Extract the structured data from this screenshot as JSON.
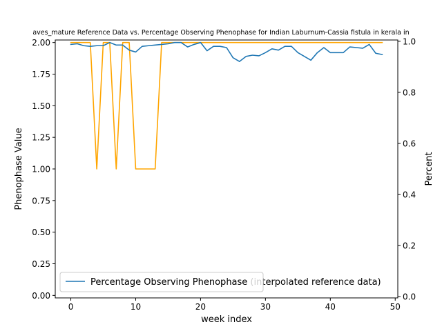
{
  "chart_data": {
    "type": "line",
    "title": "aves_mature Reference Data vs. Percentage Observing Phenophase for Indian Laburnum-Cassia fistula in kerala in",
    "xlabel": "week index",
    "ylabel_left": "Phenophase Value",
    "ylabel_right": "Percent",
    "xlim": [
      -2.4,
      50.4
    ],
    "ylim_left": [
      -0.02,
      2.02
    ],
    "ylim_right": [
      -0.005,
      1.005
    ],
    "x_ticks": [
      0,
      10,
      20,
      30,
      40,
      50
    ],
    "x_tick_labels": [
      "0",
      "10",
      "20",
      "30",
      "40",
      "50"
    ],
    "y_left_ticks": [
      0.0,
      0.25,
      0.5,
      0.75,
      1.0,
      1.25,
      1.5,
      1.75,
      2.0
    ],
    "y_left_tick_labels": [
      "0.00",
      "0.25",
      "0.50",
      "0.75",
      "1.00",
      "1.25",
      "1.50",
      "1.75",
      "2.00"
    ],
    "y_right_ticks": [
      0.0,
      0.2,
      0.4,
      0.6,
      0.8,
      1.0
    ],
    "y_right_tick_labels": [
      "0.0",
      "0.2",
      "0.4",
      "0.6",
      "0.8",
      "1.0"
    ],
    "grid": false,
    "legend_placement": "lower-left",
    "legend_text_back": "Percentage Observing Phenophase (interpolated reference data)",
    "series": [
      {
        "name": "Percentage Observing Phenophase",
        "axis": "left",
        "color": "#1f77b4",
        "x": [
          0,
          1,
          2,
          3,
          4,
          5,
          6,
          7,
          8,
          9,
          10,
          11,
          12,
          13,
          14,
          15,
          16,
          17,
          18,
          19,
          20,
          21,
          22,
          23,
          24,
          25,
          26,
          27,
          28,
          29,
          30,
          31,
          32,
          33,
          34,
          35,
          36,
          37,
          38,
          39,
          40,
          41,
          42,
          43,
          44,
          45,
          46,
          47,
          48
        ],
        "values": [
          1.985,
          1.99,
          1.975,
          1.97,
          1.975,
          1.975,
          2.0,
          1.98,
          1.98,
          1.94,
          1.925,
          1.97,
          1.975,
          1.98,
          1.985,
          1.99,
          2.0,
          2.0,
          1.965,
          1.985,
          2.0,
          1.935,
          1.97,
          1.97,
          1.96,
          1.88,
          1.85,
          1.89,
          1.9,
          1.895,
          1.92,
          1.95,
          1.94,
          1.97,
          1.97,
          1.92,
          1.89,
          1.86,
          1.92,
          1.96,
          1.92,
          1.92,
          1.92,
          1.965,
          1.96,
          1.955,
          1.985,
          1.915,
          1.905
        ]
      },
      {
        "name": "",
        "axis": "left",
        "color": "#ffa500",
        "x": [
          0,
          1,
          2,
          3,
          4,
          5,
          6,
          7,
          8,
          9,
          10,
          11,
          12,
          13,
          14,
          15,
          16,
          17,
          18,
          19,
          20,
          21,
          22,
          23,
          24,
          25,
          26,
          27,
          28,
          29,
          30,
          31,
          32,
          33,
          34,
          35,
          36,
          37,
          38,
          39,
          40,
          41,
          42,
          43,
          44,
          45,
          46,
          47,
          48
        ],
        "values": [
          2,
          2,
          2,
          2,
          1,
          2,
          2,
          1,
          2,
          2,
          1,
          1,
          1,
          1,
          2,
          2,
          2,
          2,
          2,
          2,
          2,
          2,
          2,
          2,
          2,
          2,
          2,
          2,
          2,
          2,
          2,
          2,
          2,
          2,
          2,
          2,
          2,
          2,
          2,
          2,
          2,
          2,
          2,
          2,
          2,
          2,
          2,
          2,
          2
        ]
      }
    ]
  }
}
